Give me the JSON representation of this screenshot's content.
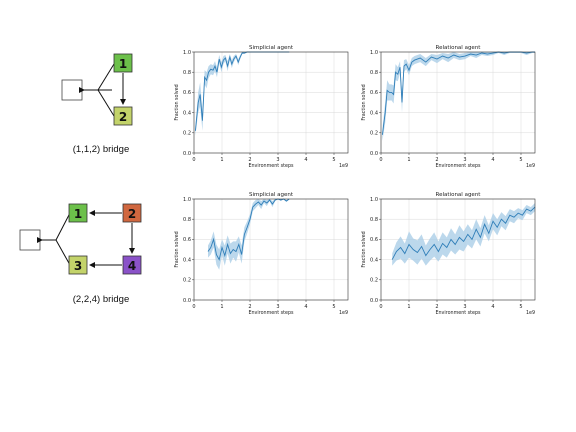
{
  "bridges": [
    {
      "caption": "(1,1,2) bridge",
      "blocks": [
        {
          "label": "1",
          "color": "#6cc04a"
        },
        {
          "label": "2",
          "color": "#c3d36a"
        }
      ]
    },
    {
      "caption": "(2,2,4) bridge",
      "blocks": [
        {
          "label": "1",
          "color": "#6cc04a"
        },
        {
          "label": "2",
          "color": "#d0673f"
        },
        {
          "label": "3",
          "color": "#c3d36a"
        },
        {
          "label": "4",
          "color": "#8a52c8"
        }
      ]
    }
  ],
  "colors": {
    "line": "#2f7eb8",
    "band": "#a6cbe6",
    "grid": "#d9d9d9"
  },
  "chart_data": [
    {
      "type": "line",
      "title": "Simplicial agent",
      "xlabel": "Environment steps",
      "ylabel": "Fraction solved",
      "x_offset_label": "1e9",
      "xlim": [
        0,
        5.5
      ],
      "ylim": [
        0,
        1.0
      ],
      "xticks": [
        0,
        1,
        2,
        3,
        4,
        5
      ],
      "yticks": [
        0.0,
        0.2,
        0.4,
        0.6,
        0.8,
        1.0
      ],
      "grid": true,
      "series": [
        {
          "x": [
            0.05,
            0.15,
            0.22,
            0.3,
            0.38,
            0.45,
            0.52,
            0.6,
            0.68,
            0.75,
            0.82,
            0.9,
            0.98,
            1.05,
            1.12,
            1.2,
            1.28,
            1.35,
            1.42,
            1.5,
            1.58,
            1.65,
            1.72,
            1.8,
            1.9,
            2.0,
            2.2,
            2.5,
            2.8,
            3.1,
            3.4
          ],
          "y": [
            0.22,
            0.5,
            0.58,
            0.32,
            0.75,
            0.72,
            0.8,
            0.83,
            0.82,
            0.86,
            0.8,
            0.93,
            0.85,
            0.92,
            0.94,
            0.86,
            0.95,
            0.88,
            0.93,
            0.96,
            0.9,
            0.95,
            0.99,
            0.99,
            1.0,
            1.0,
            1.0,
            1.0,
            1.0,
            1.0,
            1.0
          ],
          "band": [
            0.05,
            0.1,
            0.12,
            0.1,
            0.07,
            0.08,
            0.06,
            0.05,
            0.05,
            0.05,
            0.05,
            0.04,
            0.05,
            0.04,
            0.03,
            0.05,
            0.03,
            0.04,
            0.03,
            0.02,
            0.03,
            0.02,
            0.01,
            0.01,
            0.005,
            0.005,
            0.003,
            0.003,
            0.003,
            0.003,
            0.003
          ]
        }
      ]
    },
    {
      "type": "line",
      "title": "Relational agent",
      "xlabel": "Environment steps",
      "ylabel": "Fraction solved",
      "x_offset_label": "1e9",
      "xlim": [
        0,
        5.5
      ],
      "ylim": [
        0,
        1.0
      ],
      "xticks": [
        0,
        1,
        2,
        3,
        4,
        5
      ],
      "yticks": [
        0.0,
        0.2,
        0.4,
        0.6,
        0.8,
        1.0
      ],
      "grid": true,
      "series": [
        {
          "x": [
            0.05,
            0.15,
            0.22,
            0.3,
            0.38,
            0.45,
            0.52,
            0.6,
            0.68,
            0.75,
            0.82,
            0.9,
            1.0,
            1.1,
            1.2,
            1.4,
            1.6,
            1.8,
            2.0,
            2.2,
            2.4,
            2.6,
            2.8,
            3.0,
            3.2,
            3.4,
            3.6,
            3.8,
            4.0,
            4.2,
            4.4,
            4.6,
            4.8,
            5.0,
            5.2,
            5.4,
            5.5
          ],
          "y": [
            0.18,
            0.4,
            0.62,
            0.6,
            0.6,
            0.58,
            0.8,
            0.78,
            0.85,
            0.5,
            0.86,
            0.88,
            0.82,
            0.9,
            0.92,
            0.94,
            0.9,
            0.95,
            0.93,
            0.96,
            0.94,
            0.97,
            0.95,
            0.96,
            0.98,
            0.97,
            0.99,
            0.98,
            0.99,
            1.0,
            0.99,
            1.0,
            1.0,
            1.0,
            0.99,
            1.0,
            1.0
          ],
          "band": [
            0.06,
            0.1,
            0.1,
            0.08,
            0.08,
            0.09,
            0.08,
            0.07,
            0.06,
            0.1,
            0.06,
            0.05,
            0.05,
            0.04,
            0.04,
            0.04,
            0.04,
            0.03,
            0.04,
            0.03,
            0.04,
            0.03,
            0.03,
            0.03,
            0.02,
            0.03,
            0.02,
            0.02,
            0.02,
            0.01,
            0.02,
            0.01,
            0.01,
            0.01,
            0.02,
            0.01,
            0.01
          ]
        }
      ]
    },
    {
      "type": "line",
      "title": "Simplicial agent",
      "xlabel": "Environment steps",
      "ylabel": "Fraction solved",
      "x_offset_label": "1e9",
      "xlim": [
        0,
        5.5
      ],
      "ylim": [
        0,
        1.0
      ],
      "xticks": [
        0,
        1,
        2,
        3,
        4,
        5
      ],
      "yticks": [
        0.0,
        0.2,
        0.4,
        0.6,
        0.8,
        1.0
      ],
      "grid": true,
      "series": [
        {
          "x": [
            0.5,
            0.6,
            0.7,
            0.8,
            0.9,
            1.0,
            1.1,
            1.2,
            1.3,
            1.4,
            1.5,
            1.6,
            1.7,
            1.8,
            1.9,
            2.0,
            2.1,
            2.2,
            2.3,
            2.4,
            2.5,
            2.6,
            2.7,
            2.8,
            2.9,
            3.0,
            3.1,
            3.2,
            3.3,
            3.4
          ],
          "y": [
            0.48,
            0.52,
            0.6,
            0.45,
            0.4,
            0.52,
            0.44,
            0.55,
            0.46,
            0.5,
            0.48,
            0.55,
            0.45,
            0.65,
            0.72,
            0.8,
            0.92,
            0.95,
            0.97,
            0.94,
            0.98,
            0.96,
            0.99,
            0.95,
            0.99,
            1.0,
            0.99,
            1.0,
            0.98,
            1.0
          ],
          "band": [
            0.06,
            0.07,
            0.08,
            0.1,
            0.1,
            0.08,
            0.1,
            0.09,
            0.1,
            0.08,
            0.1,
            0.08,
            0.09,
            0.07,
            0.06,
            0.05,
            0.04,
            0.04,
            0.03,
            0.04,
            0.02,
            0.03,
            0.01,
            0.03,
            0.01,
            0.005,
            0.01,
            0.005,
            0.01,
            0.005
          ]
        }
      ]
    },
    {
      "type": "line",
      "title": "Relational agent",
      "xlabel": "Environment steps",
      "ylabel": "Fraction solved",
      "x_offset_label": "1e9",
      "xlim": [
        0,
        5.5
      ],
      "ylim": [
        0,
        1.0
      ],
      "xticks": [
        0,
        1,
        2,
        3,
        4,
        5
      ],
      "yticks": [
        0.0,
        0.2,
        0.4,
        0.6,
        0.8,
        1.0
      ],
      "grid": true,
      "series": [
        {
          "x": [
            0.4,
            0.55,
            0.7,
            0.85,
            1.0,
            1.15,
            1.3,
            1.45,
            1.6,
            1.75,
            1.9,
            2.05,
            2.2,
            2.35,
            2.5,
            2.65,
            2.8,
            2.95,
            3.1,
            3.25,
            3.4,
            3.55,
            3.7,
            3.85,
            4.0,
            4.15,
            4.3,
            4.45,
            4.6,
            4.75,
            4.9,
            5.05,
            5.2,
            5.35,
            5.5
          ],
          "y": [
            0.4,
            0.48,
            0.52,
            0.46,
            0.55,
            0.5,
            0.47,
            0.53,
            0.44,
            0.5,
            0.55,
            0.48,
            0.56,
            0.52,
            0.6,
            0.55,
            0.62,
            0.58,
            0.65,
            0.6,
            0.7,
            0.62,
            0.75,
            0.66,
            0.78,
            0.72,
            0.8,
            0.76,
            0.84,
            0.82,
            0.86,
            0.84,
            0.9,
            0.88,
            0.92
          ],
          "band": [
            0.06,
            0.09,
            0.11,
            0.1,
            0.13,
            0.11,
            0.12,
            0.12,
            0.1,
            0.11,
            0.12,
            0.1,
            0.11,
            0.1,
            0.11,
            0.1,
            0.12,
            0.1,
            0.1,
            0.09,
            0.1,
            0.09,
            0.09,
            0.08,
            0.08,
            0.08,
            0.07,
            0.07,
            0.06,
            0.06,
            0.05,
            0.05,
            0.04,
            0.04,
            0.04
          ]
        }
      ]
    }
  ]
}
